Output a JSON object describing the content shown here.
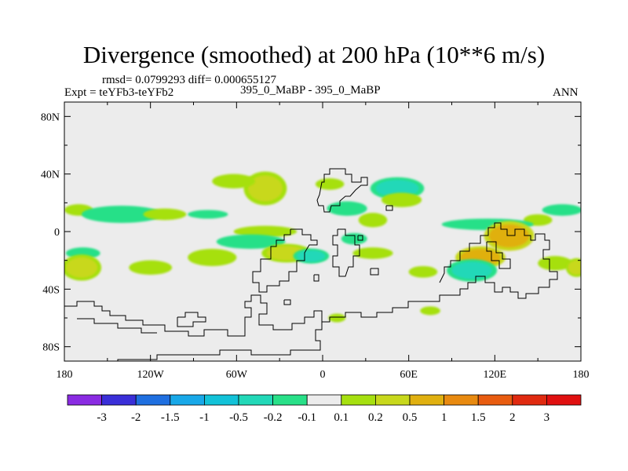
{
  "chart_data": {
    "type": "contour_map",
    "title": "Divergence (smoothed) at 200 hPa (10**6 m/s)",
    "stats_line": "rmsd= 0.0799293 diff= 0.000655127",
    "expt_label": "Expt = teYFb3-teYFb2",
    "center_subtitle": "395_0_MaBP - 395_0_MaBP",
    "season": "ANN",
    "x_ticks": [
      "180",
      "120W",
      "60W",
      "0",
      "60E",
      "120E",
      "180"
    ],
    "x_tick_values": [
      -180,
      -120,
      -60,
      0,
      60,
      120,
      180
    ],
    "y_ticks": [
      "80N",
      "40N",
      "0",
      "40S",
      "80S"
    ],
    "y_tick_values": [
      80,
      40,
      0,
      -40,
      -80
    ],
    "xlim": [
      -180,
      180
    ],
    "ylim": [
      -90,
      90
    ],
    "colorbar": {
      "labels": [
        "-3",
        "-2",
        "-1.5",
        "-1",
        "-0.5",
        "-0.2",
        "-0.1",
        "0.1",
        "0.2",
        "0.5",
        "1",
        "1.5",
        "2",
        "3"
      ],
      "colors": [
        "#8a2be2",
        "#3a2fd8",
        "#1f6fe0",
        "#18a8e8",
        "#12c2d8",
        "#22d8b8",
        "#28e088",
        "#ececec",
        "#a6e010",
        "#c8d81c",
        "#e0b010",
        "#e88a10",
        "#e85c10",
        "#e02a10",
        "#e01010"
      ]
    },
    "features": [
      {
        "sign": "neg",
        "lon": 167,
        "lat": 15,
        "rlon": 14,
        "rlat": 4,
        "level": "-0.1"
      },
      {
        "sign": "pos",
        "lon": 150,
        "lat": 8,
        "rlon": 10,
        "rlat": 4,
        "level": "0.1"
      },
      {
        "sign": "pos",
        "lon": -170,
        "lat": 15,
        "rlon": 10,
        "rlat": 4,
        "level": "0.1"
      },
      {
        "sign": "neg",
        "lon": -140,
        "lat": 12,
        "rlon": 28,
        "rlat": 6,
        "level": "-0.1"
      },
      {
        "sign": "pos",
        "lon": -110,
        "lat": 12,
        "rlon": 15,
        "rlat": 4,
        "level": "0.1"
      },
      {
        "sign": "neg",
        "lon": -167,
        "lat": -15,
        "rlon": 12,
        "rlat": 4,
        "level": "-0.1"
      },
      {
        "sign": "pos",
        "lon": -168,
        "lat": -25,
        "rlon": 11,
        "rlat": 7,
        "level": "0.2"
      },
      {
        "sign": "pos",
        "lon": -120,
        "lat": -25,
        "rlon": 15,
        "rlat": 5,
        "level": "0.1"
      },
      {
        "sign": "pos",
        "lon": -77,
        "lat": -18,
        "rlon": 17,
        "rlat": 6,
        "level": "0.1"
      },
      {
        "sign": "neg",
        "lon": -80,
        "lat": 12,
        "rlon": 14,
        "rlat": 3,
        "level": "-0.1"
      },
      {
        "sign": "pos",
        "lon": -40,
        "lat": 30,
        "rlon": 12,
        "rlat": 9,
        "level": "0.2"
      },
      {
        "sign": "pos",
        "lon": -62,
        "lat": 35,
        "rlon": 15,
        "rlat": 5,
        "level": "0.1"
      },
      {
        "sign": "pos",
        "lon": -40,
        "lat": 0,
        "rlon": 22,
        "rlat": 4,
        "level": "0.1"
      },
      {
        "sign": "neg",
        "lon": -50,
        "lat": -7,
        "rlon": 24,
        "rlat": 5,
        "level": "-0.1"
      },
      {
        "sign": "pos",
        "lon": -25,
        "lat": -15,
        "rlon": 14,
        "rlat": 5,
        "level": "0.2"
      },
      {
        "sign": "neg",
        "lon": -8,
        "lat": -17,
        "rlon": 10,
        "rlat": 4,
        "level": "-0.2"
      },
      {
        "sign": "neg",
        "lon": 17,
        "lat": 16,
        "rlon": 14,
        "rlat": 5,
        "level": "-0.1"
      },
      {
        "sign": "pos",
        "lon": 5,
        "lat": 33,
        "rlon": 10,
        "rlat": 4,
        "level": "0.1"
      },
      {
        "sign": "pos",
        "lon": 35,
        "lat": 8,
        "rlon": 10,
        "rlat": 5,
        "level": "0.1"
      },
      {
        "sign": "neg",
        "lon": 22,
        "lat": -5,
        "rlon": 9,
        "rlat": 4,
        "level": "-0.1"
      },
      {
        "sign": "neg",
        "lon": 52,
        "lat": 30,
        "rlon": 15,
        "rlat": 6,
        "level": "-0.2"
      },
      {
        "sign": "pos",
        "lon": 55,
        "lat": 22,
        "rlon": 14,
        "rlat": 5,
        "level": "0.1"
      },
      {
        "sign": "pos",
        "lon": 35,
        "lat": -15,
        "rlon": 14,
        "rlat": 4,
        "level": "0.1"
      },
      {
        "sign": "pos",
        "lon": 70,
        "lat": -28,
        "rlon": 10,
        "rlat": 4,
        "level": "0.1"
      },
      {
        "sign": "neg",
        "lon": 115,
        "lat": 5,
        "rlon": 32,
        "rlat": 4,
        "level": "-0.1"
      },
      {
        "sign": "pos",
        "lon": 130,
        "lat": -3,
        "rlon": 14,
        "rlat": 8,
        "level": "0.5"
      },
      {
        "sign": "pos",
        "lon": 110,
        "lat": -18,
        "rlon": 14,
        "rlat": 6,
        "level": "0.5"
      },
      {
        "sign": "neg",
        "lon": 104,
        "lat": -27,
        "rlon": 14,
        "rlat": 6,
        "level": "-0.2"
      },
      {
        "sign": "pos",
        "lon": 162,
        "lat": -22,
        "rlon": 12,
        "rlat": 5,
        "level": "0.1"
      },
      {
        "sign": "pos",
        "lon": 177,
        "lat": -25,
        "rlon": 6,
        "rlat": 5,
        "level": "0.2"
      },
      {
        "sign": "pos",
        "lon": 75,
        "lat": -55,
        "rlon": 7,
        "rlat": 3,
        "level": "0.1"
      },
      {
        "sign": "pos",
        "lon": 10,
        "lat": -60,
        "rlon": 6,
        "rlat": 3,
        "level": "0.1"
      }
    ]
  }
}
